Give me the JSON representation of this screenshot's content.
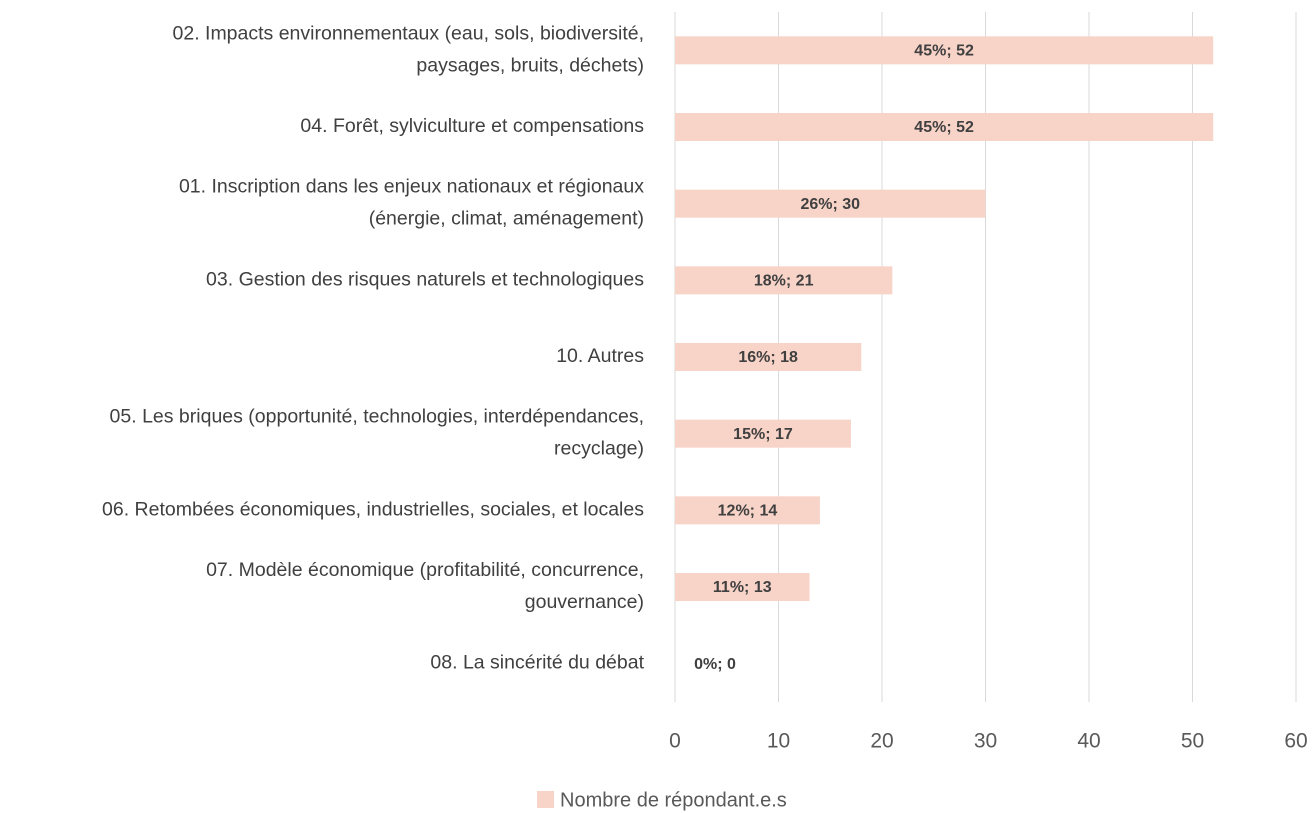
{
  "chart_data": {
    "type": "bar",
    "orientation": "horizontal",
    "categories": [
      "02. Impacts environnementaux (eau, sols, biodiversité,\npaysages, bruits, déchets)",
      "04. Forêt, sylviculture et compensations",
      "01. Inscription dans les enjeux nationaux et régionaux\n(énergie, climat, aménagement)",
      "03. Gestion des risques naturels et technologiques",
      "10. Autres",
      "05. Les briques (opportunité, technologies, interdépendances,\nrecyclage)",
      "06. Retombées économiques, industrielles, sociales, et locales",
      "07. Modèle économique (profitabilité, concurrence,\ngouvernance)",
      "08. La sincérité du débat"
    ],
    "series": [
      {
        "name": "Nombre de répondant.e.s",
        "color": "#f8d4c8",
        "values": [
          52,
          52,
          30,
          21,
          18,
          17,
          14,
          13,
          0
        ],
        "value_labels": [
          "45%; 52",
          "45%; 52",
          "26%; 30",
          "18%; 21",
          "16%; 18",
          "15%; 17",
          "12%; 14",
          "11%; 13",
          "0%; 0"
        ]
      }
    ],
    "xlim": [
      0,
      60
    ],
    "xticks": [
      0,
      10,
      20,
      30,
      40,
      50,
      60
    ],
    "grid": true,
    "legend": "bottom"
  }
}
